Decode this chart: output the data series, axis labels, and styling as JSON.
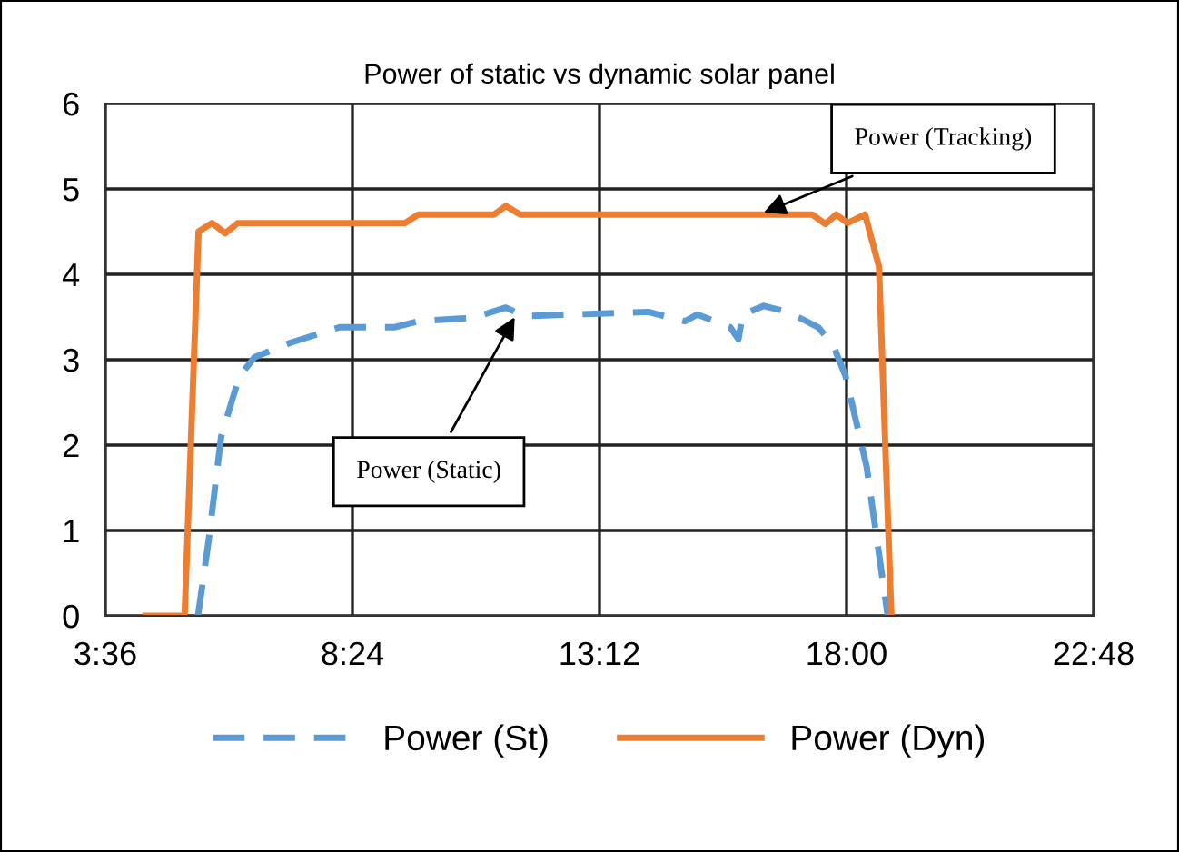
{
  "chart_data": {
    "type": "line",
    "title": "Power of static vs dynamic solar panel",
    "xlim": [
      3.6,
      22.8
    ],
    "xticks": [
      {
        "value": 3.6,
        "label": "3:36"
      },
      {
        "value": 8.4,
        "label": "8:24"
      },
      {
        "value": 13.2,
        "label": "13:12"
      },
      {
        "value": 18.0,
        "label": "18:00"
      },
      {
        "value": 22.8,
        "label": "22:48"
      }
    ],
    "ylim": [
      0,
      6
    ],
    "yticks": [
      0,
      1,
      2,
      3,
      4,
      5,
      6
    ],
    "grid": true,
    "legend": "bottom",
    "marker": "none",
    "series": [
      {
        "name": "Power (St)",
        "color": "#5b9bd5",
        "line_style": "dashed",
        "x": [
          5.4,
          5.61,
          5.85,
          6.2,
          6.5,
          7.2,
          8.15,
          9.21,
          9.68,
          10.74,
          11.38,
          11.74,
          14.15,
          14.86,
          15.1,
          15.74,
          15.9,
          15.98,
          16.39,
          16.86,
          17.45,
          17.74,
          17.98,
          18.39,
          18.8
        ],
        "values": [
          0,
          0.9,
          2.1,
          2.8,
          3.03,
          3.2,
          3.38,
          3.38,
          3.45,
          3.49,
          3.61,
          3.51,
          3.56,
          3.45,
          3.53,
          3.38,
          3.24,
          3.53,
          3.63,
          3.56,
          3.38,
          3.17,
          2.81,
          1.75,
          0
        ]
      },
      {
        "name": "Power (Dyn)",
        "color": "#ed7d31",
        "line_style": "solid",
        "x": [
          4.38,
          5.14,
          5.41,
          5.67,
          5.93,
          6.17,
          9.42,
          9.68,
          11.15,
          11.38,
          11.66,
          17.33,
          17.59,
          17.8,
          18.02,
          18.36,
          18.63,
          18.87
        ],
        "values": [
          0,
          0,
          4.5,
          4.6,
          4.48,
          4.6,
          4.6,
          4.7,
          4.7,
          4.8,
          4.7,
          4.7,
          4.59,
          4.7,
          4.6,
          4.7,
          4.09,
          0
        ]
      }
    ],
    "annotations": [
      {
        "text": "Power (Tracking)",
        "x": 16.3,
        "y": 4.7
      },
      {
        "text": "Power (Static)",
        "x": 11.6,
        "y": 3.55
      }
    ]
  }
}
